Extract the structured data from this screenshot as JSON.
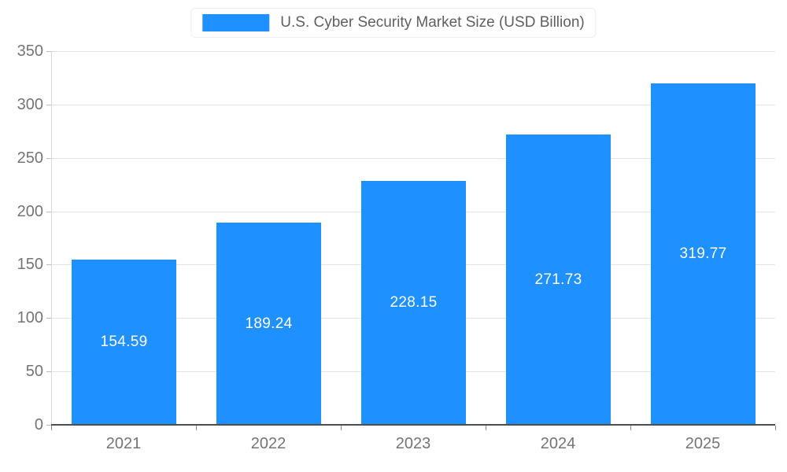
{
  "chart_data": {
    "type": "bar",
    "title": "U.S. Cyber Security Market Size (USD Billion)",
    "categories": [
      "2021",
      "2022",
      "2023",
      "2024",
      "2025"
    ],
    "values": [
      154.59,
      189.24,
      228.15,
      271.73,
      319.77
    ],
    "value_labels": [
      "154.59",
      "189.24",
      "228.15",
      "271.73",
      "319.77"
    ],
    "xlabel": "",
    "ylabel": "",
    "ylim": [
      0,
      350
    ],
    "y_ticks": [
      0,
      50,
      100,
      150,
      200,
      250,
      300,
      350
    ],
    "grid": true,
    "legend_position": "top"
  },
  "colors": {
    "background": "#ffffff",
    "bar": "#1e90ff",
    "grid_line": "#e3e3e3",
    "y_axis_line": "#d9d9d9",
    "x_axis_line": "#4d4d4d",
    "axis_text": "#757575",
    "legend_text": "#5f5f5f",
    "value_text": "#ffffff"
  }
}
